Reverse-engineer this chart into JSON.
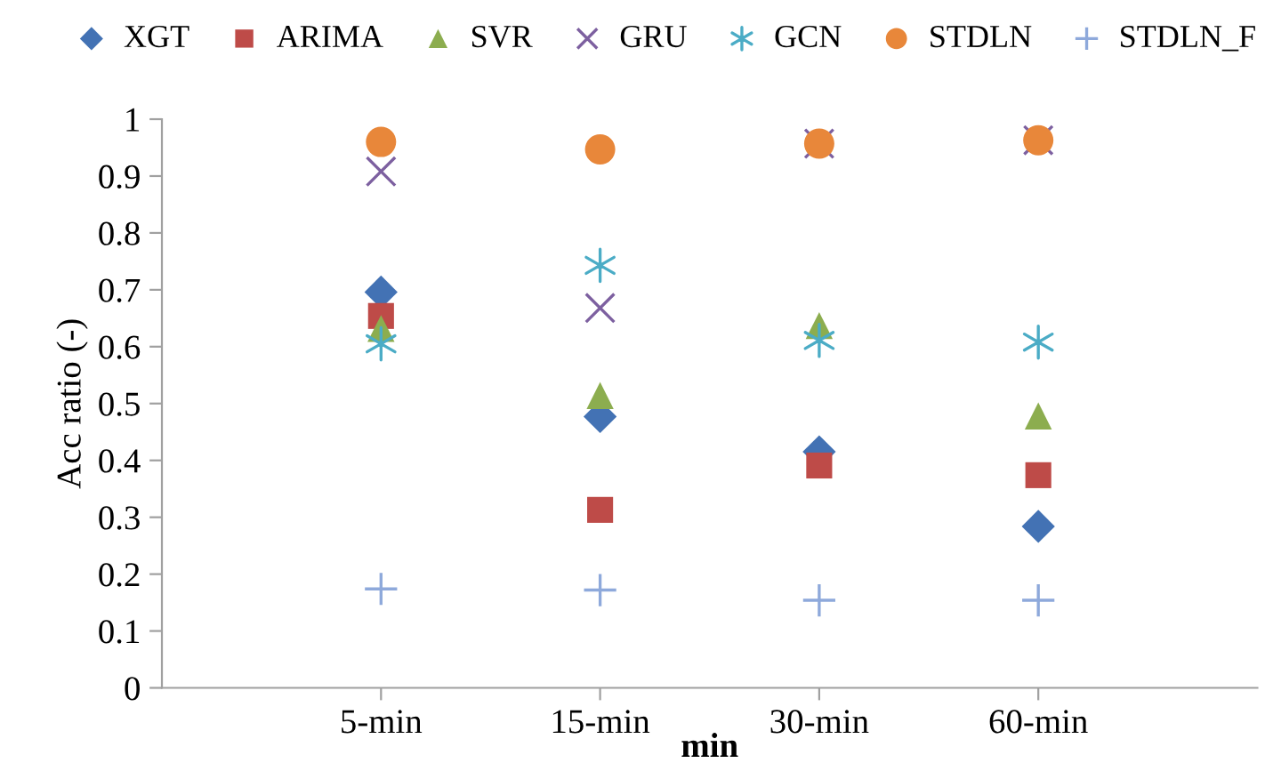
{
  "chart_data": {
    "type": "scatter",
    "xlabel": "min",
    "ylabel": "Acc ratio (-)",
    "categories": [
      null,
      "5-min",
      "15-min",
      "30-min",
      "60-min",
      null
    ],
    "ylim": [
      0,
      1
    ],
    "yticks": [
      0,
      0.1,
      0.2,
      0.3,
      0.4,
      0.5,
      0.6,
      0.7,
      0.8,
      0.9,
      1
    ],
    "grid": false,
    "legend": "top",
    "series": [
      {
        "name": "XGT",
        "color": "#4372b4",
        "marker": "diamond",
        "values": [
          null,
          0.696,
          0.477,
          0.415,
          0.284,
          null
        ]
      },
      {
        "name": "ARIMA",
        "color": "#be4b48",
        "marker": "square",
        "values": [
          null,
          0.654,
          0.313,
          0.391,
          0.374,
          null
        ]
      },
      {
        "name": "SVR",
        "color": "#8cad4f",
        "marker": "triangle",
        "values": [
          null,
          0.632,
          0.514,
          0.637,
          0.478,
          null
        ]
      },
      {
        "name": "GRU",
        "color": "#7d60a0",
        "marker": "cross",
        "values": [
          null,
          0.908,
          0.668,
          0.957,
          0.963,
          null
        ]
      },
      {
        "name": "GCN",
        "color": "#4bacc6",
        "values": [
          null,
          0.605,
          0.743,
          0.611,
          0.608,
          null
        ]
      },
      {
        "name": "STDLN",
        "color": "#e8873a",
        "marker": "circle",
        "values": [
          null,
          0.96,
          0.947,
          0.957,
          0.963,
          null
        ]
      },
      {
        "name": "STDLN_F",
        "color": "#8ea9db",
        "marker": "plus",
        "values": [
          null,
          0.174,
          0.172,
          0.154,
          0.154,
          null
        ]
      }
    ]
  }
}
